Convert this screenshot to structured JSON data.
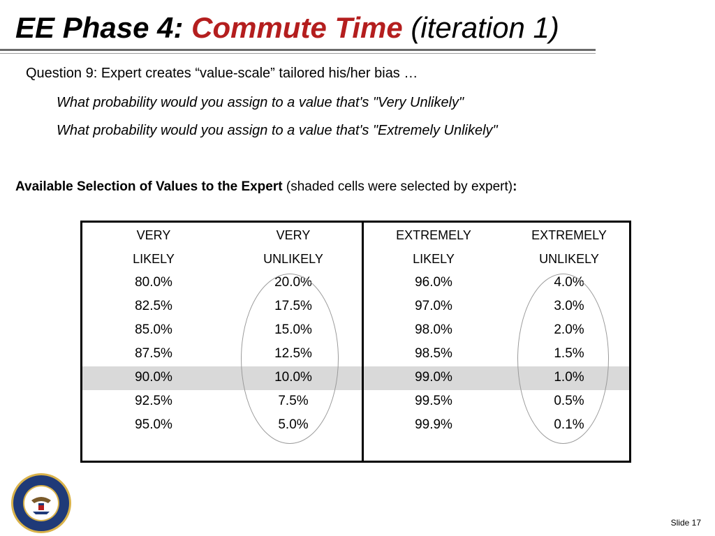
{
  "slide": {
    "title_part1": "EE Phase 4: ",
    "title_part2": "Commute Time",
    "title_part3": " (iteration 1)",
    "question": "Question 9: Expert creates “value-scale” tailored his/her bias …",
    "sub_question_1": "What probability would you assign to a value that's \"Very Unlikely\"",
    "sub_question_2": "What probability would you assign to a value that's \"Extremely Unlikely\"",
    "available_bold": "Available Selection of Values to the Expert",
    "available_rest": " (shaded cells were selected by expert)",
    "available_colon": ":",
    "slide_number": "Slide 17",
    "seal_text": "DEPARTMENT OF THE NAVY • CENTER FOR COST ANALYSIS"
  },
  "colors": {
    "title_accent": "#b41e1e",
    "shaded_row": "#d9d9d9"
  },
  "table": {
    "headers": [
      [
        "VERY",
        "LIKELY"
      ],
      [
        "VERY",
        "UNLIKELY"
      ],
      [
        "EXTREMELY",
        "LIKELY"
      ],
      [
        "EXTREMELY",
        "UNLIKELY"
      ]
    ],
    "rows": [
      [
        "80.0%",
        "20.0%",
        "96.0%",
        "4.0%"
      ],
      [
        "82.5%",
        "17.5%",
        "97.0%",
        "3.0%"
      ],
      [
        "85.0%",
        "15.0%",
        "98.0%",
        "2.0%"
      ],
      [
        "87.5%",
        "12.5%",
        "98.5%",
        "1.5%"
      ],
      [
        "90.0%",
        "10.0%",
        "99.0%",
        "1.0%"
      ],
      [
        "92.5%",
        "7.5%",
        "99.5%",
        "0.5%"
      ],
      [
        "95.0%",
        "5.0%",
        "99.9%",
        "0.1%"
      ]
    ],
    "shaded_row_index": 4,
    "circled_columns": [
      1,
      3
    ]
  }
}
